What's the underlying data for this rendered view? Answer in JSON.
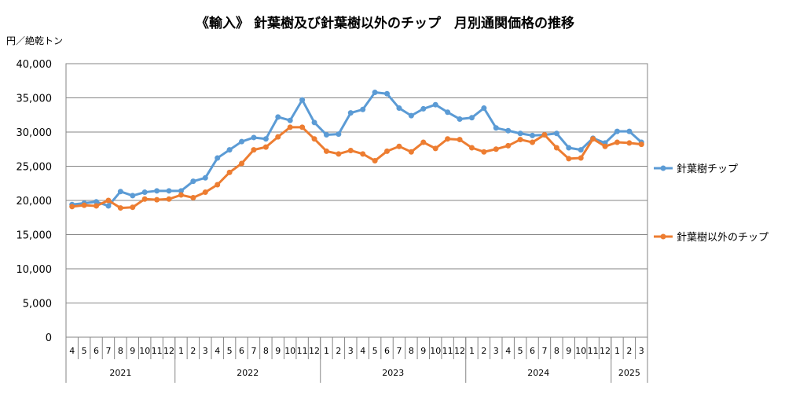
{
  "chart_data": {
    "type": "line",
    "title": "《輸入》 針葉樹及び針葉樹以外のチップ　月別通関価格の推移",
    "ylabel": "円／絶乾トン",
    "xlabel": "",
    "ylim": [
      0,
      40000
    ],
    "yticks": [
      "0",
      "5,000",
      "10,000",
      "15,000",
      "20,000",
      "25,000",
      "30,000",
      "35,000",
      "40,000"
    ],
    "grid": true,
    "legend_position": "right",
    "categories": [
      "4",
      "5",
      "6",
      "7",
      "8",
      "9",
      "10",
      "11",
      "12",
      "1",
      "2",
      "3",
      "4",
      "5",
      "6",
      "7",
      "8",
      "9",
      "10",
      "11",
      "12",
      "1",
      "2",
      "3",
      "4",
      "5",
      "6",
      "7",
      "8",
      "9",
      "10",
      "11",
      "12",
      "1",
      "2",
      "3",
      "4",
      "5",
      "6",
      "7",
      "8",
      "9",
      "10",
      "11",
      "12",
      "1",
      "2",
      "3"
    ],
    "years": [
      {
        "label": "2021",
        "count": 9
      },
      {
        "label": "2022",
        "count": 12
      },
      {
        "label": "2023",
        "count": 12
      },
      {
        "label": "2024",
        "count": 12
      },
      {
        "label": "2025",
        "count": 3
      }
    ],
    "series": [
      {
        "name": "針葉樹チップ",
        "color": "#5B9BD5",
        "values": [
          19400,
          19600,
          19800,
          19200,
          21300,
          20700,
          21200,
          21400,
          21400,
          21400,
          22800,
          23300,
          26200,
          27400,
          28600,
          29200,
          29000,
          32200,
          31700,
          34700,
          31400,
          29600,
          29700,
          32800,
          33300,
          35800,
          35600,
          33500,
          32400,
          33400,
          34000,
          32900,
          31900,
          32100,
          33500,
          30600,
          30200,
          29800,
          29500,
          29600,
          29800,
          27700,
          27400,
          29100,
          28400,
          30100,
          30100,
          28500
        ]
      },
      {
        "name": "針葉樹以外のチップ",
        "color": "#ED7D31",
        "values": [
          19100,
          19300,
          19200,
          20000,
          18900,
          19000,
          20200,
          20100,
          20200,
          20800,
          20400,
          21200,
          22300,
          24100,
          25400,
          27400,
          27800,
          29300,
          30700,
          30700,
          29000,
          27200,
          26800,
          27300,
          26800,
          25800,
          27200,
          27900,
          27100,
          28500,
          27600,
          29000,
          28900,
          27700,
          27100,
          27500,
          28000,
          28900,
          28500,
          29600,
          27700,
          26100,
          26200,
          29000,
          27900,
          28500,
          28400,
          28200
        ]
      }
    ]
  }
}
